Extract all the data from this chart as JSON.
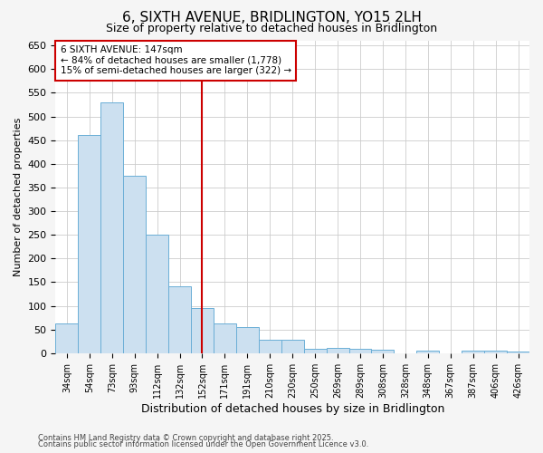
{
  "title": "6, SIXTH AVENUE, BRIDLINGTON, YO15 2LH",
  "subtitle": "Size of property relative to detached houses in Bridlington",
  "xlabel": "Distribution of detached houses by size in Bridlington",
  "ylabel": "Number of detached properties",
  "categories": [
    "34sqm",
    "54sqm",
    "73sqm",
    "93sqm",
    "112sqm",
    "132sqm",
    "152sqm",
    "171sqm",
    "191sqm",
    "210sqm",
    "230sqm",
    "250sqm",
    "269sqm",
    "289sqm",
    "308sqm",
    "328sqm",
    "348sqm",
    "367sqm",
    "387sqm",
    "406sqm",
    "426sqm"
  ],
  "values": [
    63,
    460,
    530,
    375,
    250,
    142,
    95,
    63,
    55,
    29,
    29,
    10,
    12,
    10,
    8,
    0,
    6,
    0,
    5,
    5,
    4
  ],
  "bar_color": "#cce0f0",
  "bar_edge_color": "#6baed6",
  "highlight_line_index": 6,
  "highlight_line_color": "#cc0000",
  "annotation_text": "6 SIXTH AVENUE: 147sqm\n← 84% of detached houses are smaller (1,778)\n15% of semi-detached houses are larger (322) →",
  "annotation_box_color": "#cc0000",
  "ylim": [
    0,
    660
  ],
  "yticks": [
    0,
    50,
    100,
    150,
    200,
    250,
    300,
    350,
    400,
    450,
    500,
    550,
    600,
    650
  ],
  "footnote1": "Contains HM Land Registry data © Crown copyright and database right 2025.",
  "footnote2": "Contains public sector information licensed under the Open Government Licence v3.0.",
  "bg_color": "#f5f5f5",
  "plot_bg_color": "#ffffff",
  "grid_color": "#cccccc",
  "title_fontsize": 11,
  "subtitle_fontsize": 9,
  "xlabel_fontsize": 9,
  "ylabel_fontsize": 8,
  "xtick_fontsize": 7,
  "ytick_fontsize": 8,
  "annot_fontsize": 7.5,
  "footnote_fontsize": 6
}
